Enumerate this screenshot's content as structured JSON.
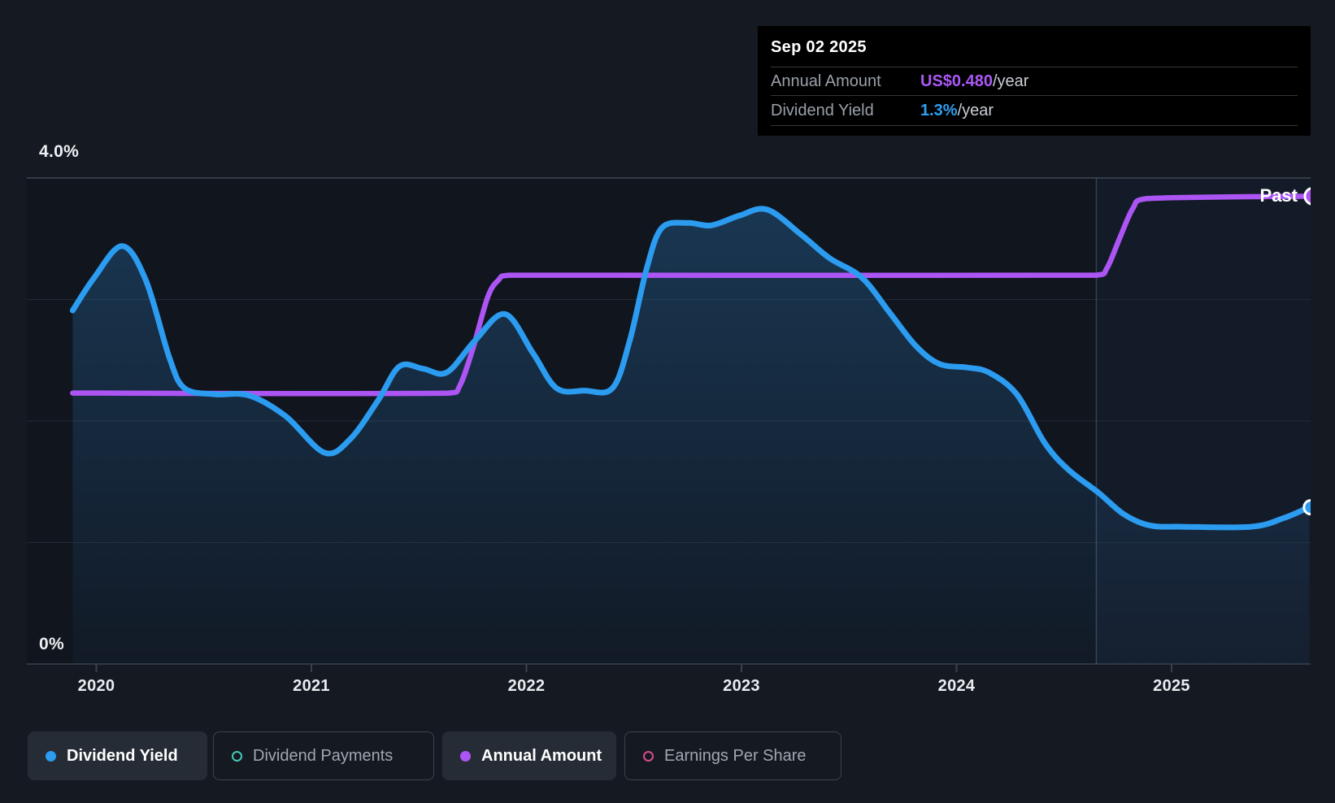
{
  "tooltip": {
    "date": "Sep 02 2025",
    "rows": [
      {
        "label": "Annual Amount",
        "value": "US$0.480",
        "suffix": "/year",
        "value_color": "#ab58f5"
      },
      {
        "label": "Dividend Yield",
        "value": "1.3%",
        "suffix": "/year",
        "value_color": "#2e9ff2"
      }
    ]
  },
  "axis": {
    "y_top_label": "4.0%",
    "y_bottom_label": "0%",
    "x_labels": [
      "2020",
      "2021",
      "2022",
      "2023",
      "2024",
      "2025"
    ]
  },
  "annotations": {
    "past_label": "Past"
  },
  "legend": [
    {
      "label": "Dividend Yield",
      "color": "#2b9cf0",
      "style": "filled",
      "active": true
    },
    {
      "label": "Dividend Payments",
      "color": "#45c8b4",
      "style": "outlined",
      "active": false
    },
    {
      "label": "Annual Amount",
      "color": "#ac55f4",
      "style": "filled",
      "active": true
    },
    {
      "label": "Earnings Per Share",
      "color": "#db4a8c",
      "style": "outlined",
      "active": false
    }
  ],
  "colors": {
    "page_bg": "#151a22",
    "plot_bg": "#10151e",
    "future_tint": "rgba(96,154,218,0.055)",
    "grid_top": "#3f4652",
    "grid_mid": "#232a34",
    "axis_line": "#3a414c",
    "divider": "rgba(125,165,210,0.30)",
    "yield_blue": "#2b9cf0",
    "amount_purple": "#ac55f4",
    "fill_base": "#2b78b9"
  },
  "chart_data": {
    "type": "area",
    "xlim": [
      2019.89,
      2025.65
    ],
    "ylim": [
      0,
      4
    ],
    "y_unit": "percent",
    "x_ticks": [
      2020,
      2021,
      2022,
      2023,
      2024,
      2025
    ],
    "y_gridlines_pct": [
      4,
      3,
      2,
      1,
      0
    ],
    "grid": true,
    "legend_position": "bottom",
    "past_divider_year": 2024.65,
    "series": [
      {
        "name": "Dividend Yield",
        "unit": "%",
        "color": "#2b9cf0",
        "area": true,
        "points": [
          [
            2019.89,
            2.91
          ],
          [
            2019.99,
            3.18
          ],
          [
            2020.12,
            3.44
          ],
          [
            2020.23,
            3.16
          ],
          [
            2020.34,
            2.52
          ],
          [
            2020.41,
            2.27
          ],
          [
            2020.55,
            2.22
          ],
          [
            2020.71,
            2.21
          ],
          [
            2020.88,
            2.04
          ],
          [
            2021.06,
            1.74
          ],
          [
            2021.18,
            1.85
          ],
          [
            2021.31,
            2.17
          ],
          [
            2021.41,
            2.45
          ],
          [
            2021.52,
            2.43
          ],
          [
            2021.63,
            2.4
          ],
          [
            2021.76,
            2.66
          ],
          [
            2021.9,
            2.88
          ],
          [
            2022.03,
            2.56
          ],
          [
            2022.14,
            2.27
          ],
          [
            2022.27,
            2.25
          ],
          [
            2022.4,
            2.27
          ],
          [
            2022.48,
            2.66
          ],
          [
            2022.56,
            3.26
          ],
          [
            2022.63,
            3.59
          ],
          [
            2022.75,
            3.63
          ],
          [
            2022.86,
            3.61
          ],
          [
            2022.99,
            3.69
          ],
          [
            2023.12,
            3.74
          ],
          [
            2023.28,
            3.53
          ],
          [
            2023.41,
            3.34
          ],
          [
            2023.56,
            3.18
          ],
          [
            2023.69,
            2.89
          ],
          [
            2023.81,
            2.62
          ],
          [
            2023.92,
            2.47
          ],
          [
            2024.05,
            2.44
          ],
          [
            2024.15,
            2.4
          ],
          [
            2024.28,
            2.22
          ],
          [
            2024.41,
            1.82
          ],
          [
            2024.52,
            1.6
          ],
          [
            2024.66,
            1.41
          ],
          [
            2024.78,
            1.23
          ],
          [
            2024.9,
            1.14
          ],
          [
            2025.05,
            1.13
          ],
          [
            2025.37,
            1.13
          ],
          [
            2025.52,
            1.2
          ],
          [
            2025.64,
            1.29
          ]
        ]
      },
      {
        "name": "Annual Amount",
        "unit": "display-scale (current US$0.480/year)",
        "color": "#ac55f4",
        "area": false,
        "points": [
          [
            2019.89,
            2.23
          ],
          [
            2021.64,
            2.23
          ],
          [
            2021.69,
            2.29
          ],
          [
            2021.75,
            2.59
          ],
          [
            2021.82,
            3.02
          ],
          [
            2021.87,
            3.16
          ],
          [
            2021.92,
            3.2
          ],
          [
            2024.65,
            3.2
          ],
          [
            2024.7,
            3.26
          ],
          [
            2024.76,
            3.51
          ],
          [
            2024.82,
            3.75
          ],
          [
            2024.88,
            3.83
          ],
          [
            2025.65,
            3.85
          ]
        ]
      }
    ],
    "end_markers": [
      {
        "series": "Dividend Yield",
        "value_pct": 1.29
      },
      {
        "series": "Annual Amount",
        "value_pct": 3.85
      }
    ]
  }
}
